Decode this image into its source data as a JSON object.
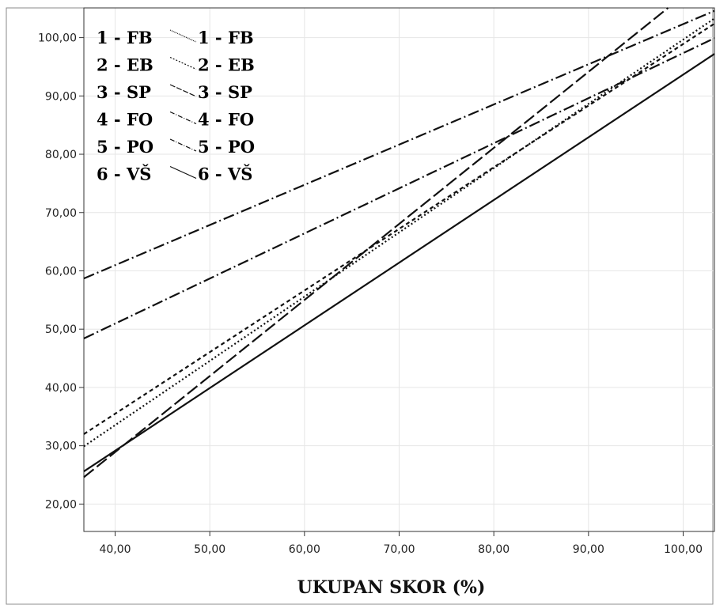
{
  "chart_data": {
    "type": "line",
    "title": "",
    "xlabel": "UKUPAN SKOR (%)",
    "ylabel": "",
    "xlim": [
      36.7,
      103.3
    ],
    "ylim": [
      15.3,
      105.1
    ],
    "x_ticks": [
      40,
      50,
      60,
      70,
      80,
      90,
      100
    ],
    "y_ticks": [
      20,
      30,
      40,
      50,
      60,
      70,
      80,
      90,
      100
    ],
    "x_tick_labels": [
      "40,00",
      "50,00",
      "60,00",
      "70,00",
      "80,00",
      "90,00",
      "100,00"
    ],
    "y_tick_labels": [
      "20,00",
      "30,00",
      "40,00",
      "50,00",
      "60,00",
      "70,00",
      "80,00",
      "90,00",
      "100,00"
    ],
    "grid": true,
    "legend_position": "top-left",
    "series": [
      {
        "name": "1 - FB",
        "dash": "2,3",
        "x": [
          36.7,
          103.3
        ],
        "y": [
          29.9,
          103.3
        ]
      },
      {
        "name": "2 - EB",
        "dash": "5,4",
        "x": [
          36.7,
          103.3
        ],
        "y": [
          32.0,
          102.4
        ]
      },
      {
        "name": "3 - SP",
        "dash": "16,5",
        "x": [
          36.7,
          98.4
        ],
        "y": [
          24.6,
          105.1
        ]
      },
      {
        "name": "4 - FO",
        "dash": "14,4,2,4",
        "x": [
          36.7,
          103.3
        ],
        "y": [
          48.4,
          99.9
        ]
      },
      {
        "name": "5 - PO",
        "dash": "14,4,2,4",
        "x": [
          36.7,
          103.3
        ],
        "y": [
          58.7,
          104.6
        ]
      },
      {
        "name": "6 - VŠ",
        "dash": "",
        "x": [
          36.7,
          103.3
        ],
        "y": [
          25.6,
          97.2
        ]
      }
    ]
  }
}
